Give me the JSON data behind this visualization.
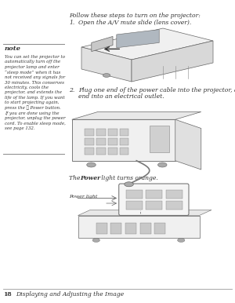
{
  "background_color": "#ffffff",
  "page_number": "18",
  "footer_text": "Displaying and Adjusting the Image",
  "header_text": "Follow these steps to turn on the projector:",
  "step1_num": "1.",
  "step1_text": "Open the A/V mute slide (lens cover).",
  "step2_num": "2.",
  "step2_line1": "Plug one end of the power cable into the projector, and the other",
  "step2_line2": "end into an electrical outlet.",
  "power_text1": "The ",
  "power_text2": "Power",
  "power_text3": " light turns orange.",
  "power_light_label": "Power light",
  "note_title": "note",
  "note_body": "You can set the projector to\nautomatically turn off the\nprojector lamp and enter\n“sleep mode” when it has\nnot received any signals for\n30 minutes. This conserves\nelectricity, cools the\nprojector, and extends the\nlife of the lamp. If you want\nto start projecting again,\npress the ⓞ Power button.\nIf you are done using the\nprojector, unplug the power\ncord. To enable sleep mode,\nsee page 132.",
  "text_color": "#333333",
  "note_line_color": "#999999",
  "footer_line_color": "#999999",
  "light_gray": "#e8e8e8",
  "mid_gray": "#cccccc",
  "dark_gray": "#888888",
  "edge_color": "#666666"
}
